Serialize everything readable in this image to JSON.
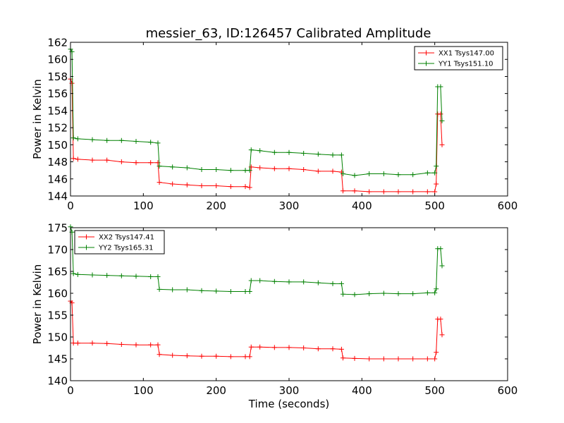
{
  "title": "messier_63, ID:126457 Calibrated Amplitude",
  "chart_data": [
    {
      "type": "line",
      "xlabel": "",
      "ylabel": "Power in Kelvin",
      "xlim": [
        0,
        600
      ],
      "ylim": [
        144,
        162
      ],
      "xticks": [
        0,
        100,
        200,
        300,
        400,
        500,
        600
      ],
      "yticks": [
        144,
        146,
        148,
        150,
        152,
        154,
        156,
        158,
        160,
        162
      ],
      "legend_position": "upper right",
      "grid": false,
      "series": [
        {
          "name": "XX1 Tsys147.00",
          "color": "#ff0000",
          "marker": "+",
          "points": [
            [
              0,
              157.7
            ],
            [
              2,
              157.2
            ],
            [
              4,
              148.4
            ],
            [
              10,
              148.3
            ],
            [
              30,
              148.2
            ],
            [
              50,
              148.2
            ],
            [
              70,
              148.0
            ],
            [
              90,
              147.9
            ],
            [
              110,
              147.9
            ],
            [
              120,
              147.9
            ],
            [
              122,
              145.6
            ],
            [
              140,
              145.4
            ],
            [
              160,
              145.3
            ],
            [
              180,
              145.2
            ],
            [
              200,
              145.2
            ],
            [
              220,
              145.1
            ],
            [
              240,
              145.1
            ],
            [
              246,
              145.0
            ],
            [
              248,
              147.4
            ],
            [
              260,
              147.3
            ],
            [
              280,
              147.2
            ],
            [
              300,
              147.2
            ],
            [
              320,
              147.1
            ],
            [
              340,
              146.9
            ],
            [
              360,
              146.9
            ],
            [
              372,
              146.8
            ],
            [
              374,
              144.6
            ],
            [
              390,
              144.6
            ],
            [
              410,
              144.5
            ],
            [
              430,
              144.5
            ],
            [
              450,
              144.5
            ],
            [
              470,
              144.5
            ],
            [
              490,
              144.5
            ],
            [
              500,
              144.5
            ],
            [
              502,
              145.4
            ],
            [
              504,
              153.6
            ],
            [
              508,
              153.6
            ],
            [
              510,
              150.0
            ]
          ]
        },
        {
          "name": "YY1 Tsys151.10",
          "color": "#008000",
          "marker": "+",
          "points": [
            [
              0,
              161.2
            ],
            [
              2,
              160.9
            ],
            [
              4,
              150.8
            ],
            [
              10,
              150.7
            ],
            [
              30,
              150.6
            ],
            [
              50,
              150.5
            ],
            [
              70,
              150.5
            ],
            [
              90,
              150.4
            ],
            [
              110,
              150.3
            ],
            [
              120,
              150.2
            ],
            [
              122,
              147.5
            ],
            [
              140,
              147.4
            ],
            [
              160,
              147.3
            ],
            [
              180,
              147.1
            ],
            [
              200,
              147.1
            ],
            [
              220,
              147.0
            ],
            [
              240,
              147.0
            ],
            [
              246,
              147.0
            ],
            [
              248,
              149.4
            ],
            [
              260,
              149.3
            ],
            [
              280,
              149.1
            ],
            [
              300,
              149.1
            ],
            [
              320,
              149.0
            ],
            [
              340,
              148.9
            ],
            [
              360,
              148.8
            ],
            [
              372,
              148.8
            ],
            [
              374,
              146.6
            ],
            [
              390,
              146.4
            ],
            [
              410,
              146.6
            ],
            [
              430,
              146.6
            ],
            [
              450,
              146.5
            ],
            [
              470,
              146.5
            ],
            [
              490,
              146.7
            ],
            [
              500,
              146.7
            ],
            [
              502,
              147.5
            ],
            [
              504,
              156.8
            ],
            [
              508,
              156.8
            ],
            [
              510,
              152.8
            ]
          ]
        }
      ]
    },
    {
      "type": "line",
      "xlabel": "Time (seconds)",
      "ylabel": "Power in Kelvin",
      "xlim": [
        0,
        600
      ],
      "ylim": [
        140,
        175
      ],
      "xticks": [
        0,
        100,
        200,
        300,
        400,
        500,
        600
      ],
      "yticks": [
        140,
        145,
        150,
        155,
        160,
        165,
        170,
        175
      ],
      "legend_position": "upper left",
      "grid": false,
      "series": [
        {
          "name": "XX2 Tsys147.41",
          "color": "#ff0000",
          "marker": "+",
          "points": [
            [
              0,
              158.2
            ],
            [
              2,
              157.8
            ],
            [
              4,
              148.6
            ],
            [
              10,
              148.6
            ],
            [
              30,
              148.6
            ],
            [
              50,
              148.5
            ],
            [
              70,
              148.3
            ],
            [
              90,
              148.2
            ],
            [
              110,
              148.2
            ],
            [
              120,
              148.2
            ],
            [
              122,
              146.0
            ],
            [
              140,
              145.8
            ],
            [
              160,
              145.7
            ],
            [
              180,
              145.6
            ],
            [
              200,
              145.6
            ],
            [
              220,
              145.5
            ],
            [
              240,
              145.5
            ],
            [
              246,
              145.5
            ],
            [
              248,
              147.7
            ],
            [
              260,
              147.7
            ],
            [
              280,
              147.6
            ],
            [
              300,
              147.6
            ],
            [
              320,
              147.5
            ],
            [
              340,
              147.3
            ],
            [
              360,
              147.3
            ],
            [
              372,
              147.2
            ],
            [
              374,
              145.2
            ],
            [
              390,
              145.1
            ],
            [
              410,
              145.0
            ],
            [
              430,
              145.0
            ],
            [
              450,
              145.0
            ],
            [
              470,
              145.0
            ],
            [
              490,
              145.0
            ],
            [
              500,
              145.0
            ],
            [
              502,
              146.5
            ],
            [
              504,
              154.1
            ],
            [
              508,
              154.1
            ],
            [
              510,
              150.5
            ]
          ]
        },
        {
          "name": "YY2 Tsys165.31",
          "color": "#008000",
          "marker": "+",
          "points": [
            [
              0,
              175.2
            ],
            [
              2,
              174.0
            ],
            [
              4,
              164.5
            ],
            [
              10,
              164.3
            ],
            [
              30,
              164.2
            ],
            [
              50,
              164.1
            ],
            [
              70,
              164.0
            ],
            [
              90,
              163.9
            ],
            [
              110,
              163.8
            ],
            [
              120,
              163.8
            ],
            [
              122,
              160.9
            ],
            [
              140,
              160.8
            ],
            [
              160,
              160.8
            ],
            [
              180,
              160.6
            ],
            [
              200,
              160.5
            ],
            [
              220,
              160.4
            ],
            [
              240,
              160.4
            ],
            [
              246,
              160.4
            ],
            [
              248,
              162.9
            ],
            [
              260,
              162.9
            ],
            [
              280,
              162.7
            ],
            [
              300,
              162.6
            ],
            [
              320,
              162.6
            ],
            [
              340,
              162.4
            ],
            [
              360,
              162.2
            ],
            [
              372,
              162.2
            ],
            [
              374,
              159.8
            ],
            [
              390,
              159.7
            ],
            [
              410,
              159.9
            ],
            [
              430,
              160.0
            ],
            [
              450,
              159.9
            ],
            [
              470,
              159.9
            ],
            [
              490,
              160.1
            ],
            [
              500,
              160.1
            ],
            [
              502,
              161.0
            ],
            [
              504,
              170.2
            ],
            [
              508,
              170.2
            ],
            [
              510,
              166.3
            ]
          ]
        }
      ]
    }
  ]
}
